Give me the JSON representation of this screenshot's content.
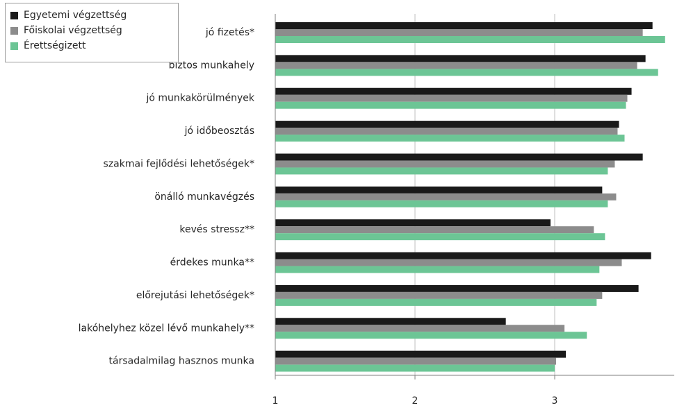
{
  "chart_data": {
    "type": "bar",
    "orientation": "horizontal",
    "categories": [
      "jó fizetés*",
      "biztos munkahely",
      "jó munkakörülmények",
      "jó időbeosztás",
      "szakmai fejlődési lehetőségek*",
      "önálló munkavégzés",
      "kevés stressz**",
      "érdekes munka**",
      "előrejutási lehetőségek*",
      "lakóhelyhez közel lévő munkahely**",
      "társadalmilag hasznos munka"
    ],
    "series": [
      {
        "name": "Egyetemi végzettség",
        "color": "#1a1a1a",
        "values": [
          3.7,
          3.65,
          3.55,
          3.46,
          3.63,
          3.34,
          2.97,
          3.69,
          3.6,
          2.65,
          3.08
        ]
      },
      {
        "name": "Főiskolai végzettség",
        "color": "#8c8c8c",
        "values": [
          3.63,
          3.59,
          3.52,
          3.45,
          3.43,
          3.44,
          3.28,
          3.48,
          3.34,
          3.07,
          3.01
        ]
      },
      {
        "name": "Érettségizett",
        "color": "#6cc595",
        "values": [
          3.79,
          3.74,
          3.51,
          3.5,
          3.38,
          3.38,
          3.36,
          3.32,
          3.3,
          3.23,
          3.0
        ]
      }
    ],
    "xticks": [
      1,
      2,
      3
    ],
    "xlim": [
      1,
      3.93
    ],
    "legend_position": "top-left",
    "grid": "vertical"
  }
}
